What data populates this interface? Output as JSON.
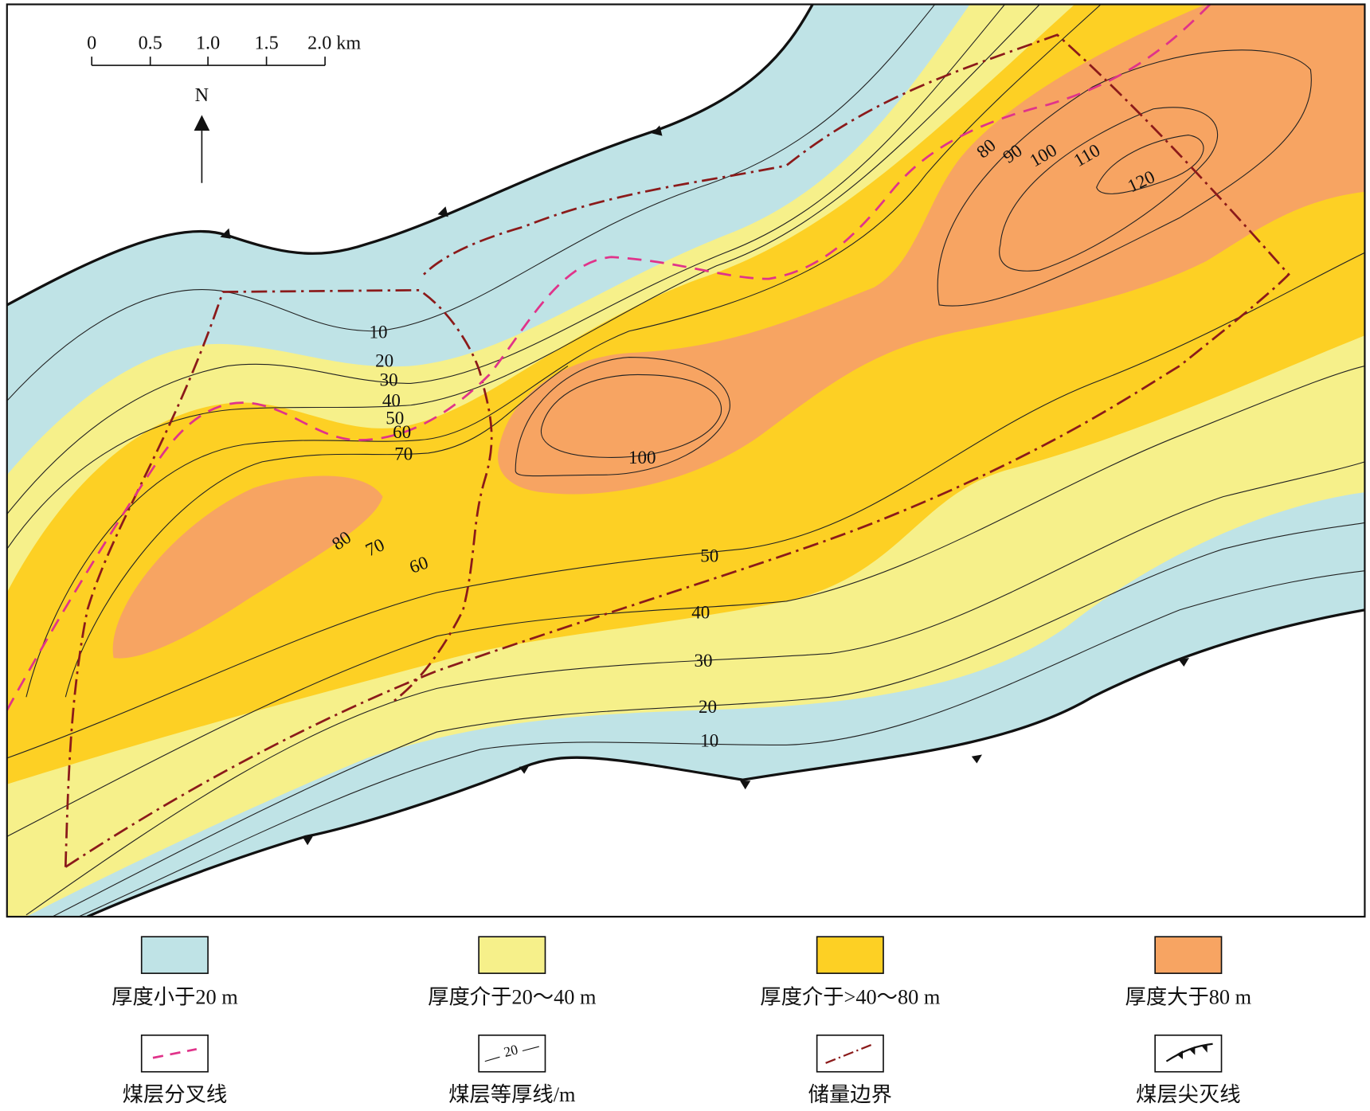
{
  "scale_bar": {
    "ticks": [
      "0",
      "0.5",
      "1.0",
      "1.5",
      "2.0 km"
    ]
  },
  "north": "N",
  "contour_labels": [
    10,
    20,
    30,
    40,
    50,
    60,
    70,
    100,
    80,
    70,
    60,
    50,
    40,
    30,
    20,
    10,
    80,
    90,
    100,
    110,
    120
  ],
  "legend": [
    {
      "label": "厚度小于20 m"
    },
    {
      "label": "厚度介于20～40 m"
    },
    {
      "label": "厚度介于>40～80 m"
    },
    {
      "label": "厚度大于80 m"
    },
    {
      "label": "煤层分叉线"
    },
    {
      "label": "煤层等厚线/m",
      "sample": "20"
    },
    {
      "label": "储量边界"
    },
    {
      "label": "煤层尖灭线"
    }
  ]
}
